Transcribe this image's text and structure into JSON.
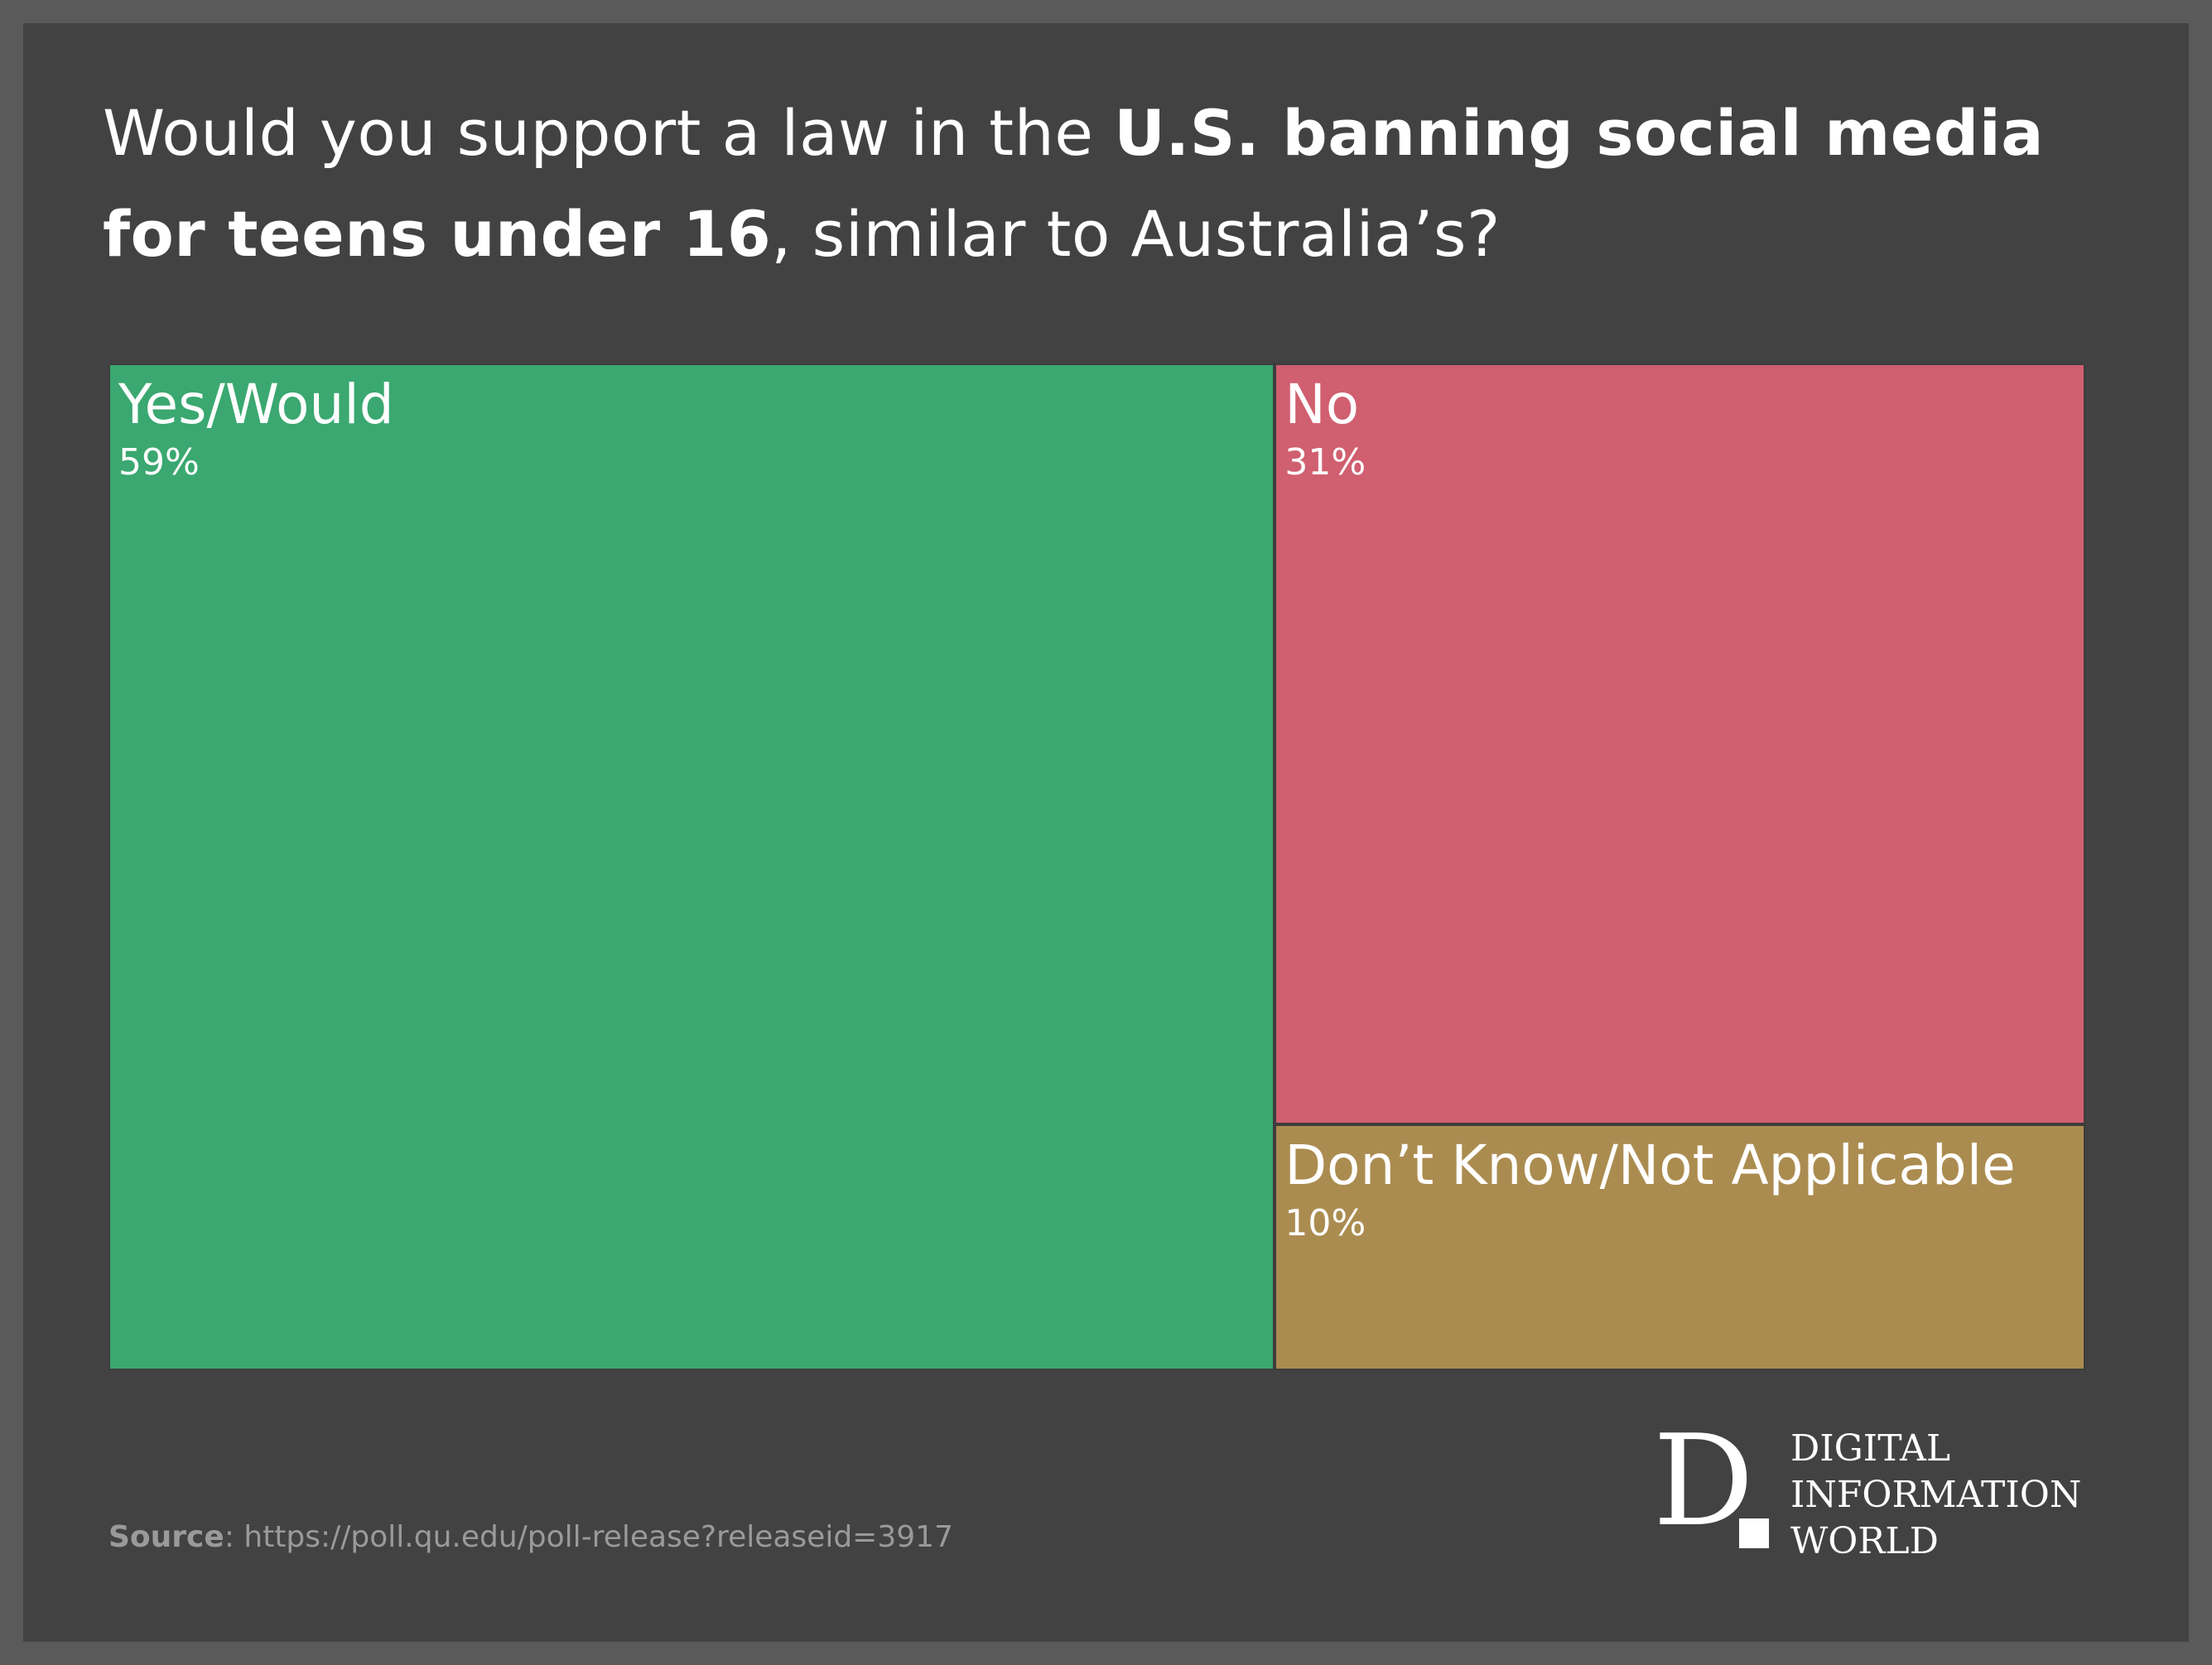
{
  "title": {
    "part1": "Would you support a law in the ",
    "bold": "U.S. banning social media for teens under 16",
    "part2": ", similar to Australia’s?"
  },
  "chart_data": {
    "type": "treemap",
    "title": "Would you support a law in the U.S. banning social media for teens under 16, similar to Australia’s?",
    "categories": [
      "Yes/Would",
      "No",
      "Don’t Know/Not Applicable"
    ],
    "values": [
      59,
      31,
      10
    ],
    "value_labels": [
      "59%",
      "31%",
      "10%"
    ],
    "unit": "%",
    "colors": [
      "#3aa870",
      "#d05f70",
      "#ab8c50"
    ]
  },
  "source": {
    "label": "Source",
    "text": ": https://poll.qu.edu/poll-release?releaseid=3917"
  },
  "logo": {
    "mark": "D",
    "line1": "DIGITAL",
    "line2": "INFORMATION",
    "line3": "WORLD"
  }
}
